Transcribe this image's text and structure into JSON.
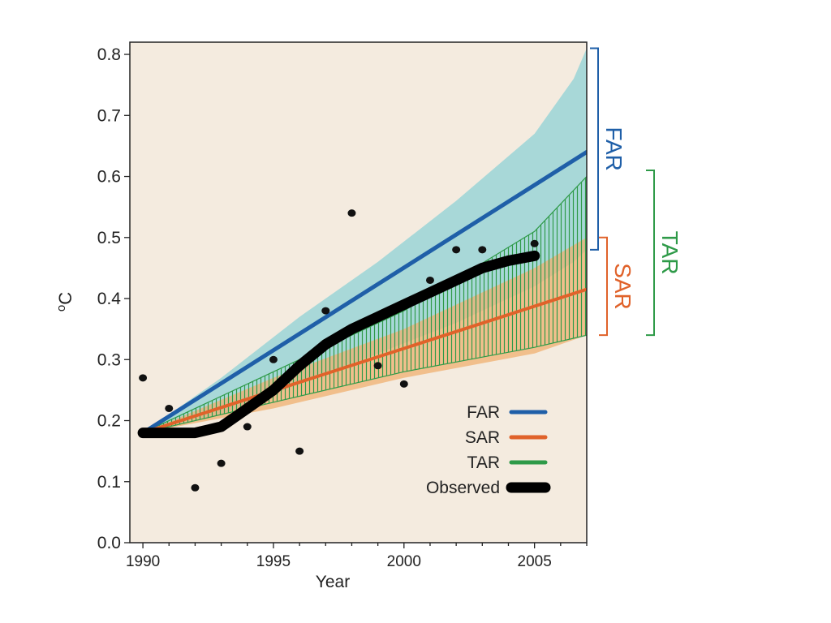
{
  "chart_data": {
    "type": "line",
    "title": "",
    "xlabel": "Year",
    "ylabel": "oC",
    "ylabel_main": "C",
    "ylabel_super": "o",
    "xlim": [
      1989.5,
      2007
    ],
    "ylim": [
      0.0,
      0.82
    ],
    "x_ticks": [
      1990,
      1995,
      2000,
      2005
    ],
    "y_ticks": [
      0.0,
      0.1,
      0.2,
      0.3,
      0.4,
      0.5,
      0.6,
      0.7,
      0.8
    ],
    "x_tick_labels": [
      "1990",
      "1995",
      "2000",
      "2005"
    ],
    "y_tick_labels": [
      "0.0",
      "0.1",
      "0.2",
      "0.3",
      "0.4",
      "0.5",
      "0.6",
      "0.7",
      "0.8"
    ],
    "grid": false,
    "legend_position": "bottom-right",
    "colors": {
      "background": "#f4ebdf",
      "far": "#1f5fa8",
      "far_band": "#a8d8d8",
      "sar": "#e0622a",
      "sar_band": "#f0b070",
      "tar": "#2e9a48",
      "observed": "#000000"
    },
    "series": [
      {
        "name": "FAR",
        "key": "far",
        "x": [
          1990,
          2007
        ],
        "y": [
          0.18,
          0.64
        ]
      },
      {
        "name": "SAR",
        "key": "sar",
        "x": [
          1990,
          2007
        ],
        "y": [
          0.18,
          0.415
        ]
      },
      {
        "name": "TAR",
        "key": "tar",
        "x": [],
        "y": []
      },
      {
        "name": "Observed",
        "key": "observed",
        "x": [
          1990,
          1991,
          1992,
          1993,
          1994,
          1995,
          1996,
          1997,
          1998,
          1999,
          2000,
          2001,
          2002,
          2003,
          2004,
          2005
        ],
        "y": [
          0.18,
          0.18,
          0.18,
          0.19,
          0.22,
          0.25,
          0.29,
          0.325,
          0.35,
          0.37,
          0.39,
          0.41,
          0.43,
          0.45,
          0.462,
          0.47
        ]
      }
    ],
    "bands": [
      {
        "key": "far_band",
        "x": [
          1990,
          1993,
          1996,
          1999,
          2002,
          2005,
          2006.5,
          2007
        ],
        "lower": [
          0.18,
          0.21,
          0.26,
          0.31,
          0.36,
          0.42,
          0.46,
          0.48
        ],
        "upper": [
          0.18,
          0.27,
          0.37,
          0.46,
          0.56,
          0.67,
          0.76,
          0.81
        ]
      },
      {
        "key": "sar_band",
        "x": [
          1990,
          1995,
          2000,
          2005,
          2007
        ],
        "lower": [
          0.18,
          0.22,
          0.27,
          0.31,
          0.34
        ],
        "upper": [
          0.18,
          0.27,
          0.35,
          0.45,
          0.5
        ]
      },
      {
        "key": "tar_band",
        "x": [
          1990,
          1995,
          2000,
          2005,
          2007
        ],
        "lower": [
          0.18,
          0.23,
          0.28,
          0.32,
          0.34
        ],
        "upper": [
          0.18,
          0.28,
          0.38,
          0.51,
          0.6
        ]
      }
    ],
    "annual_points": {
      "x": [
        1990,
        1991,
        1992,
        1993,
        1994,
        1995,
        1996,
        1997,
        1998,
        1999,
        2000,
        2001,
        2002,
        2003,
        2005
      ],
      "y": [
        0.27,
        0.22,
        0.09,
        0.13,
        0.19,
        0.3,
        0.15,
        0.38,
        0.54,
        0.29,
        0.26,
        0.43,
        0.48,
        0.48,
        0.49
      ]
    },
    "range_brackets": [
      {
        "label": "FAR",
        "key": "far",
        "min": 0.48,
        "max": 0.81
      },
      {
        "label": "SAR",
        "key": "sar",
        "min": 0.34,
        "max": 0.5
      },
      {
        "label": "TAR",
        "key": "tar",
        "min": 0.34,
        "max": 0.61
      }
    ],
    "legend": [
      "FAR",
      "SAR",
      "TAR",
      "Observed"
    ]
  }
}
